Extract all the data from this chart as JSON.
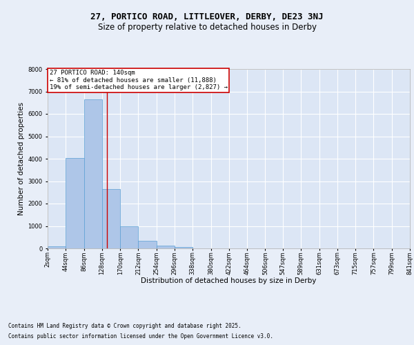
{
  "title_line1": "27, PORTICO ROAD, LITTLEOVER, DERBY, DE23 3NJ",
  "title_line2": "Size of property relative to detached houses in Derby",
  "xlabel": "Distribution of detached houses by size in Derby",
  "ylabel": "Number of detached properties",
  "bin_edges": [
    2,
    44,
    86,
    128,
    170,
    212,
    254,
    296,
    338,
    380,
    422,
    464,
    506,
    547,
    589,
    631,
    673,
    715,
    757,
    799,
    841
  ],
  "bar_heights": [
    80,
    4020,
    6650,
    2650,
    1000,
    350,
    130,
    70,
    10,
    0,
    0,
    0,
    0,
    0,
    0,
    0,
    0,
    0,
    0,
    0
  ],
  "bar_color": "#aec6e8",
  "bar_edgecolor": "#5a9fd4",
  "bg_color": "#dce6f5",
  "fig_bg_color": "#e8eef8",
  "grid_color": "#ffffff",
  "vline_x": 140,
  "vline_color": "#cc0000",
  "annotation_title": "27 PORTICO ROAD: 140sqm",
  "annotation_line2": "← 81% of detached houses are smaller (11,888)",
  "annotation_line3": "19% of semi-detached houses are larger (2,827) →",
  "annotation_box_color": "#cc0000",
  "annotation_bg": "#ffffff",
  "ylim": [
    0,
    8000
  ],
  "yticks": [
    0,
    1000,
    2000,
    3000,
    4000,
    5000,
    6000,
    7000,
    8000
  ],
  "tick_labels": [
    "2sqm",
    "44sqm",
    "86sqm",
    "128sqm",
    "170sqm",
    "212sqm",
    "254sqm",
    "296sqm",
    "338sqm",
    "380sqm",
    "422sqm",
    "464sqm",
    "506sqm",
    "547sqm",
    "589sqm",
    "631sqm",
    "673sqm",
    "715sqm",
    "757sqm",
    "799sqm",
    "841sqm"
  ],
  "footnote1": "Contains HM Land Registry data © Crown copyright and database right 2025.",
  "footnote2": "Contains public sector information licensed under the Open Government Licence v3.0.",
  "title_fontsize": 9,
  "subtitle_fontsize": 8.5,
  "axis_label_fontsize": 7.5,
  "tick_fontsize": 6,
  "annotation_fontsize": 6.5,
  "footnote_fontsize": 5.5
}
